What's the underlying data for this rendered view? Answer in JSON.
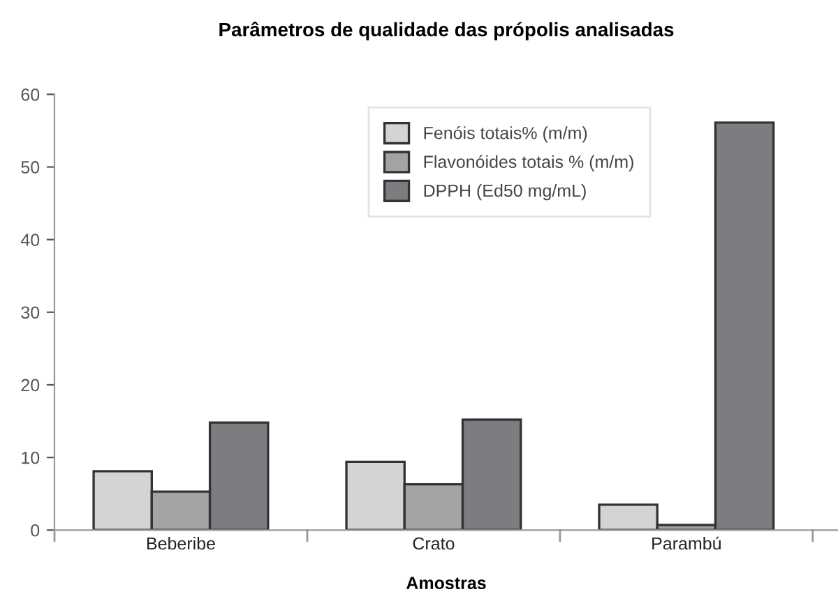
{
  "chart_data": {
    "type": "bar",
    "title": "Parâmetros de qualidade das própolis analisadas",
    "xlabel": "Amostras",
    "categories": [
      "Beberibe",
      "Crato",
      "Parambú"
    ],
    "series": [
      {
        "name": "Fenóis totais% (m/m)",
        "color": "#d4d4d4",
        "values": [
          8.1,
          9.4,
          3.5
        ]
      },
      {
        "name": "Flavonóides totais % (m/m)",
        "color": "#a3a3a5",
        "values": [
          5.3,
          6.3,
          0.7
        ]
      },
      {
        "name": "DPPH (Ed50 mg/mL)",
        "color": "#7c7d80",
        "values": [
          14.8,
          15.2,
          56.1
        ]
      }
    ],
    "ylim": [
      0,
      60
    ],
    "yticks": [
      0,
      10,
      20,
      30,
      40,
      50,
      60
    ],
    "grid": false,
    "legend": "top"
  }
}
